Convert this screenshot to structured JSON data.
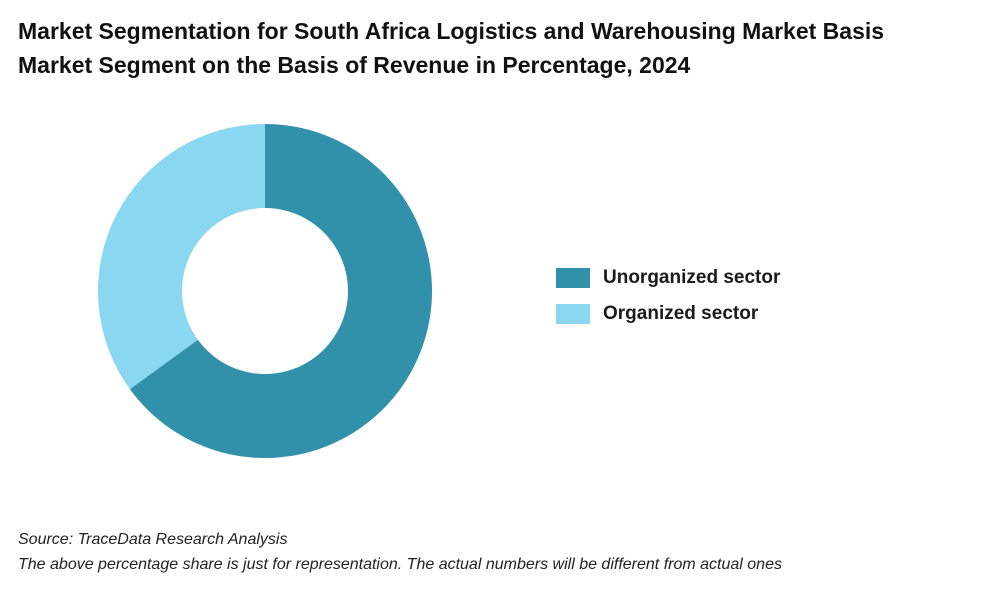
{
  "title_line1": "Market Segmentation for South Africa Logistics and Warehousing Market Basis",
  "title_line2": "Market Segment on the Basis of Revenue in Percentage, 2024",
  "source": "Source: TraceData Research Analysis",
  "note": "The above percentage share is just for representation. The actual numbers will be different from actual ones",
  "chart_data": {
    "type": "pie",
    "donut": true,
    "title": "Market Segmentation for South Africa Logistics and Warehousing Market Basis Market Segment on the Basis of Revenue in Percentage, 2024",
    "legend_position": "right",
    "slices": [
      {
        "name": "Unorganized sector",
        "value": 65,
        "color": "#3191aa"
      },
      {
        "name": "Organized sector",
        "value": 35,
        "color": "#89d7f1"
      }
    ]
  }
}
